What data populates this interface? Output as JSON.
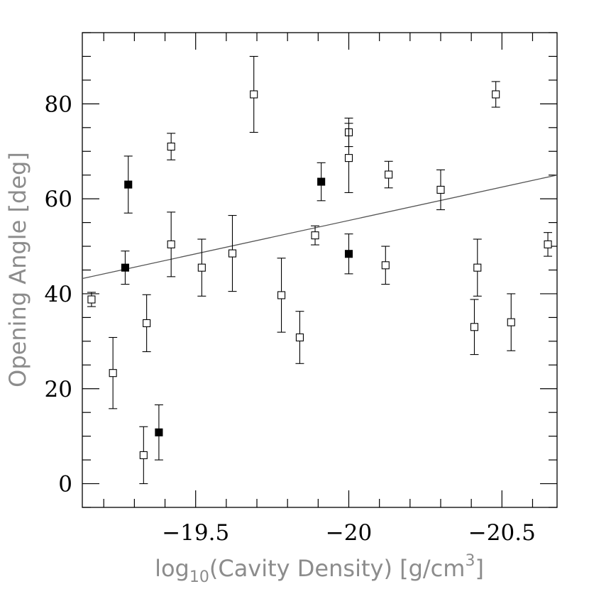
{
  "chart_data": {
    "type": "scatter",
    "title": "",
    "xlabel": "log10(Cavity Density) [g/cm3]",
    "xlabel_parts": {
      "prefix": "log",
      "sub": "10",
      "middle": "(Cavity Density) [g/cm",
      "sup": "3",
      "suffix": "]"
    },
    "ylabel": "Opening Angle [deg]",
    "xlim": [
      -19.13,
      -20.68
    ],
    "ylim": [
      -5,
      95
    ],
    "x_reversed": true,
    "x_ticks": [
      -19.5,
      -20,
      -20.5
    ],
    "x_tick_labels": [
      "−19.5",
      "−20",
      "−20.5"
    ],
    "x_minor_step": 0.1,
    "y_ticks": [
      0,
      20,
      40,
      60,
      80
    ],
    "y_tick_labels": [
      "0",
      "20",
      "40",
      "60",
      "80"
    ],
    "y_minor_step": 5,
    "grid": false,
    "legend": "none",
    "colors": {
      "axes": "#000000",
      "axis_label": "#8c8c8c",
      "fit_line": "#555555"
    },
    "series": [
      {
        "marker": "open-square",
        "points": [
          {
            "x": -19.16,
            "y": 38.8,
            "err_low": 1.5,
            "err_high": 1.5
          },
          {
            "x": -19.23,
            "y": 23.3,
            "err_low": 7.5,
            "err_high": 7.5
          },
          {
            "x": -19.34,
            "y": 33.8,
            "err_low": 6.0,
            "err_high": 6.0
          },
          {
            "x": -19.33,
            "y": 6.0,
            "err_low": 6.0,
            "err_high": 6.0
          },
          {
            "x": -19.42,
            "y": 71.0,
            "err_low": 2.8,
            "err_high": 2.8
          },
          {
            "x": -19.42,
            "y": 50.4,
            "err_low": 6.8,
            "err_high": 6.8
          },
          {
            "x": -19.52,
            "y": 45.5,
            "err_low": 6.0,
            "err_high": 6.0
          },
          {
            "x": -19.62,
            "y": 48.5,
            "err_low": 8.0,
            "err_high": 8.0
          },
          {
            "x": -19.69,
            "y": 82.0,
            "err_low": 8.0,
            "err_high": 8.0
          },
          {
            "x": -19.78,
            "y": 39.7,
            "err_low": 7.8,
            "err_high": 7.8
          },
          {
            "x": -19.84,
            "y": 30.8,
            "err_low": 5.5,
            "err_high": 5.5
          },
          {
            "x": -19.89,
            "y": 52.3,
            "err_low": 2.0,
            "err_high": 2.0
          },
          {
            "x": -20.0,
            "y": 74.0,
            "err_low": 3.0,
            "err_high": 3.0
          },
          {
            "x": -20.0,
            "y": 68.6,
            "err_low": 7.3,
            "err_high": 7.3
          },
          {
            "x": -20.12,
            "y": 46.0,
            "err_low": 4.0,
            "err_high": 4.0
          },
          {
            "x": -20.13,
            "y": 65.1,
            "err_low": 2.8,
            "err_high": 2.8
          },
          {
            "x": -20.3,
            "y": 61.9,
            "err_low": 4.2,
            "err_high": 4.2
          },
          {
            "x": -20.41,
            "y": 33.0,
            "err_low": 5.8,
            "err_high": 5.8
          },
          {
            "x": -20.42,
            "y": 45.5,
            "err_low": 6.0,
            "err_high": 6.0
          },
          {
            "x": -20.48,
            "y": 82.0,
            "err_low": 2.7,
            "err_high": 2.7
          },
          {
            "x": -20.53,
            "y": 34.0,
            "err_low": 6.0,
            "err_high": 6.0
          },
          {
            "x": -20.65,
            "y": 50.4,
            "err_low": 2.5,
            "err_high": 2.5
          }
        ]
      },
      {
        "marker": "filled-square",
        "points": [
          {
            "x": -19.28,
            "y": 63.0,
            "err_low": 6.0,
            "err_high": 6.0
          },
          {
            "x": -19.27,
            "y": 45.5,
            "err_low": 3.5,
            "err_high": 3.5
          },
          {
            "x": -19.38,
            "y": 10.8,
            "err_low": 5.8,
            "err_high": 5.8
          },
          {
            "x": -19.91,
            "y": 63.6,
            "err_low": 4.0,
            "err_high": 4.0
          },
          {
            "x": -20.0,
            "y": 48.4,
            "err_low": 4.2,
            "err_high": 4.2
          }
        ]
      }
    ],
    "fit_line": {
      "x": [
        -19.13,
        -20.68
      ],
      "y": [
        43.2,
        65.0
      ]
    }
  }
}
